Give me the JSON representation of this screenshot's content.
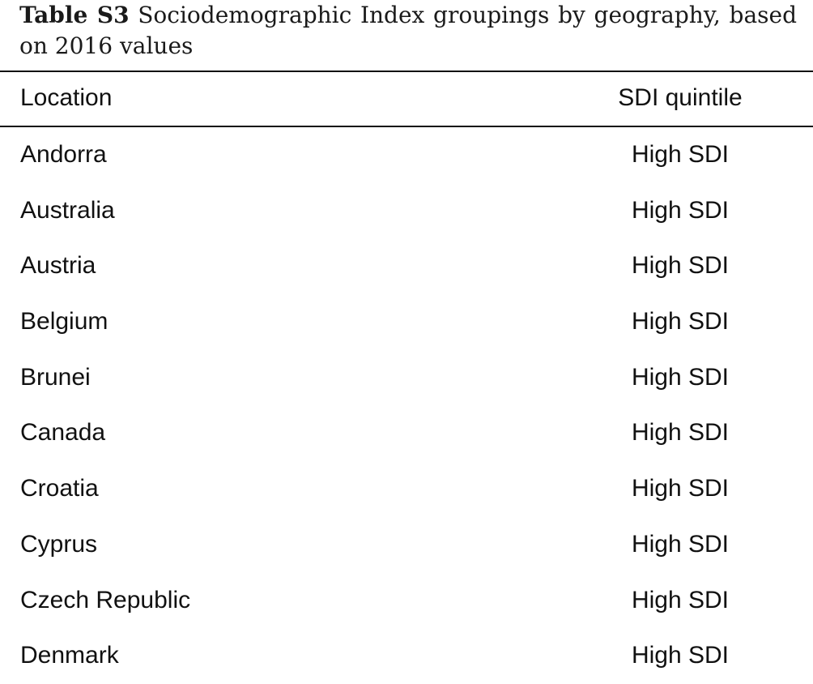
{
  "caption": {
    "label": "Table S3",
    "text": "Sociodemographic Index groupings by geography, based on 2016 values"
  },
  "table": {
    "headers": {
      "location": "Location",
      "sdi": "SDI quintile"
    },
    "rows": [
      {
        "location": "Andorra",
        "sdi": "High SDI"
      },
      {
        "location": "Australia",
        "sdi": "High SDI"
      },
      {
        "location": "Austria",
        "sdi": "High SDI"
      },
      {
        "location": "Belgium",
        "sdi": "High SDI"
      },
      {
        "location": "Brunei",
        "sdi": "High SDI"
      },
      {
        "location": "Canada",
        "sdi": "High SDI"
      },
      {
        "location": "Croatia",
        "sdi": "High SDI"
      },
      {
        "location": "Cyprus",
        "sdi": "High SDI"
      },
      {
        "location": "Czech Republic",
        "sdi": "High SDI"
      },
      {
        "location": "Denmark",
        "sdi": "High SDI"
      }
    ]
  }
}
